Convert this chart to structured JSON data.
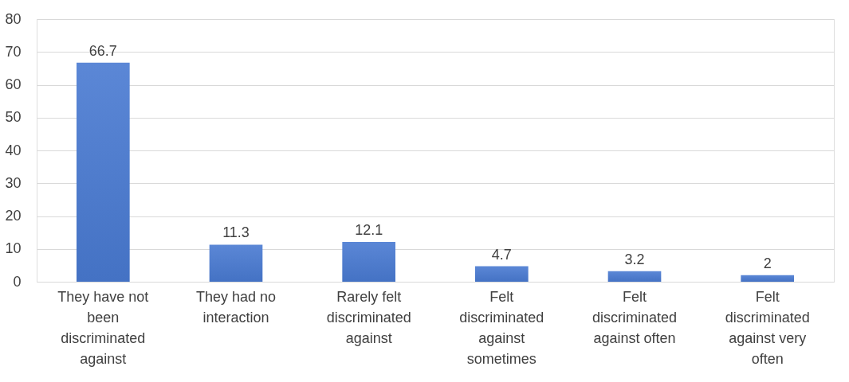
{
  "chart_data": {
    "type": "bar",
    "categories": [
      "They have not been discriminated against",
      "They had no interaction",
      "Rarely felt discriminated against",
      "Felt discriminated against sometimes",
      "Felt discriminated against often",
      "Felt discriminated against very often"
    ],
    "values": [
      66.7,
      11.3,
      12.1,
      4.7,
      3.2,
      2
    ],
    "color": "#4472c4",
    "ylim": [
      0,
      80
    ],
    "yticks": [
      0,
      10,
      20,
      30,
      40,
      50,
      60,
      70,
      80
    ],
    "grid": "y",
    "data_labels": true
  }
}
